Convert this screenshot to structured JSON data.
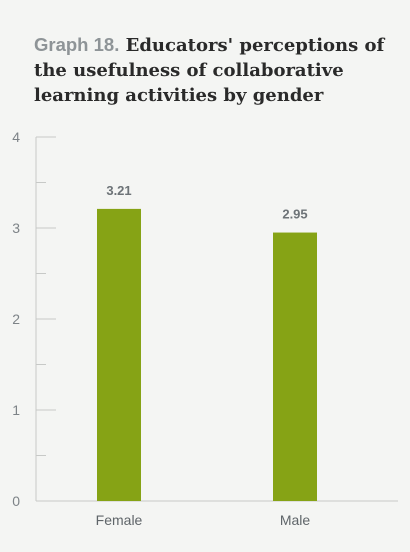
{
  "header": {
    "label": "Graph 18.",
    "title": "Educators' perceptions of the usefulness of collaborative learning activities by gender"
  },
  "chart_data": {
    "type": "bar",
    "categories": [
      "Female",
      "Male"
    ],
    "values": [
      3.21,
      2.95
    ],
    "value_labels": [
      "3.21",
      "2.95"
    ],
    "ylim": [
      0,
      4
    ],
    "y_ticks": [
      "0",
      "1",
      "2",
      "3",
      "4"
    ],
    "xlabel": "",
    "ylabel": "",
    "grid": false,
    "bar_color": "#86a315",
    "axis_color": "#c7c9c7"
  }
}
